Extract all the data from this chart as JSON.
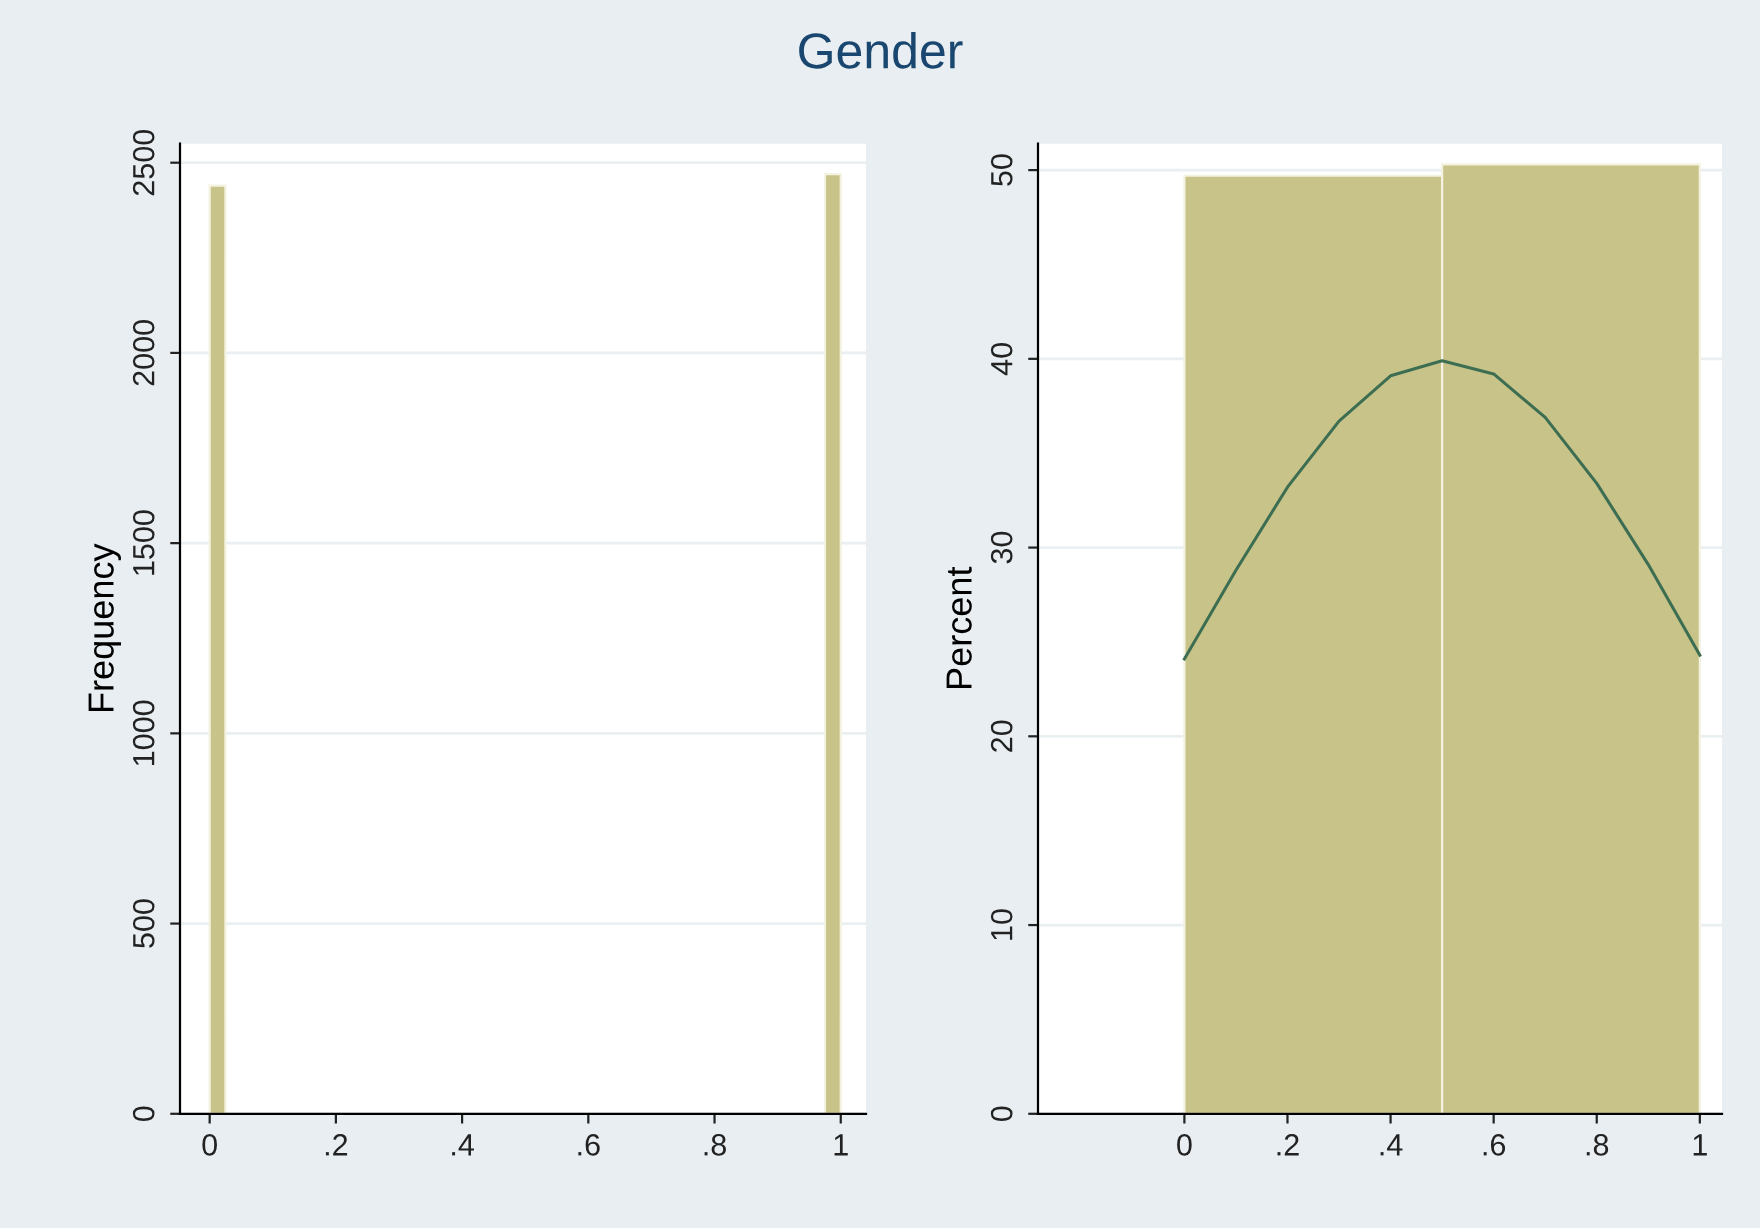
{
  "chart_data": [
    {
      "type": "histogram",
      "title": "Gender",
      "ylabel": "Frequency",
      "bins": [
        0,
        0.025,
        0.975,
        1
      ],
      "values": [
        2440,
        0,
        2470
      ],
      "color": "#c8c389",
      "xlim": [
        -0.047,
        1.04
      ],
      "ylim": [
        0,
        2550
      ],
      "xticks": [
        0,
        {
          "value": 0.2,
          "label": ".2"
        },
        {
          "value": 0.4,
          "label": ".4"
        },
        {
          "value": 0.6,
          "label": ".6"
        },
        {
          "value": 0.8,
          "label": ".8"
        },
        1
      ],
      "yticks": [
        0,
        500,
        1000,
        1500,
        2000,
        2500
      ],
      "grid": "y"
    },
    {
      "type": "histogram",
      "ylabel": "Percent",
      "series": [
        {
          "bins": [
            0,
            0.5,
            1
          ],
          "values": [
            49.7,
            50.3
          ],
          "color": "#c8c389"
        },
        {
          "type": "line",
          "x": [
            0,
            0.1,
            0.2,
            0.3,
            0.4,
            0.5,
            0.6,
            0.7,
            0.8,
            0.9,
            1
          ],
          "values": [
            24.1,
            28.8,
            33.2,
            36.7,
            39.1,
            39.9,
            39.2,
            36.9,
            33.4,
            29.1,
            24.3
          ],
          "color": "#3d6e52"
        }
      ],
      "xlim": [
        -0.284,
        1.043
      ],
      "ylim": [
        0,
        51.4
      ],
      "xticks": [
        0,
        {
          "value": 0.2,
          "label": ".2"
        },
        {
          "value": 0.4,
          "label": ".4"
        },
        {
          "value": 0.6,
          "label": ".6"
        },
        {
          "value": 0.8,
          "label": ".8"
        },
        1
      ],
      "yticks": [
        0,
        10,
        20,
        30,
        40,
        50
      ],
      "grid": "y"
    }
  ]
}
